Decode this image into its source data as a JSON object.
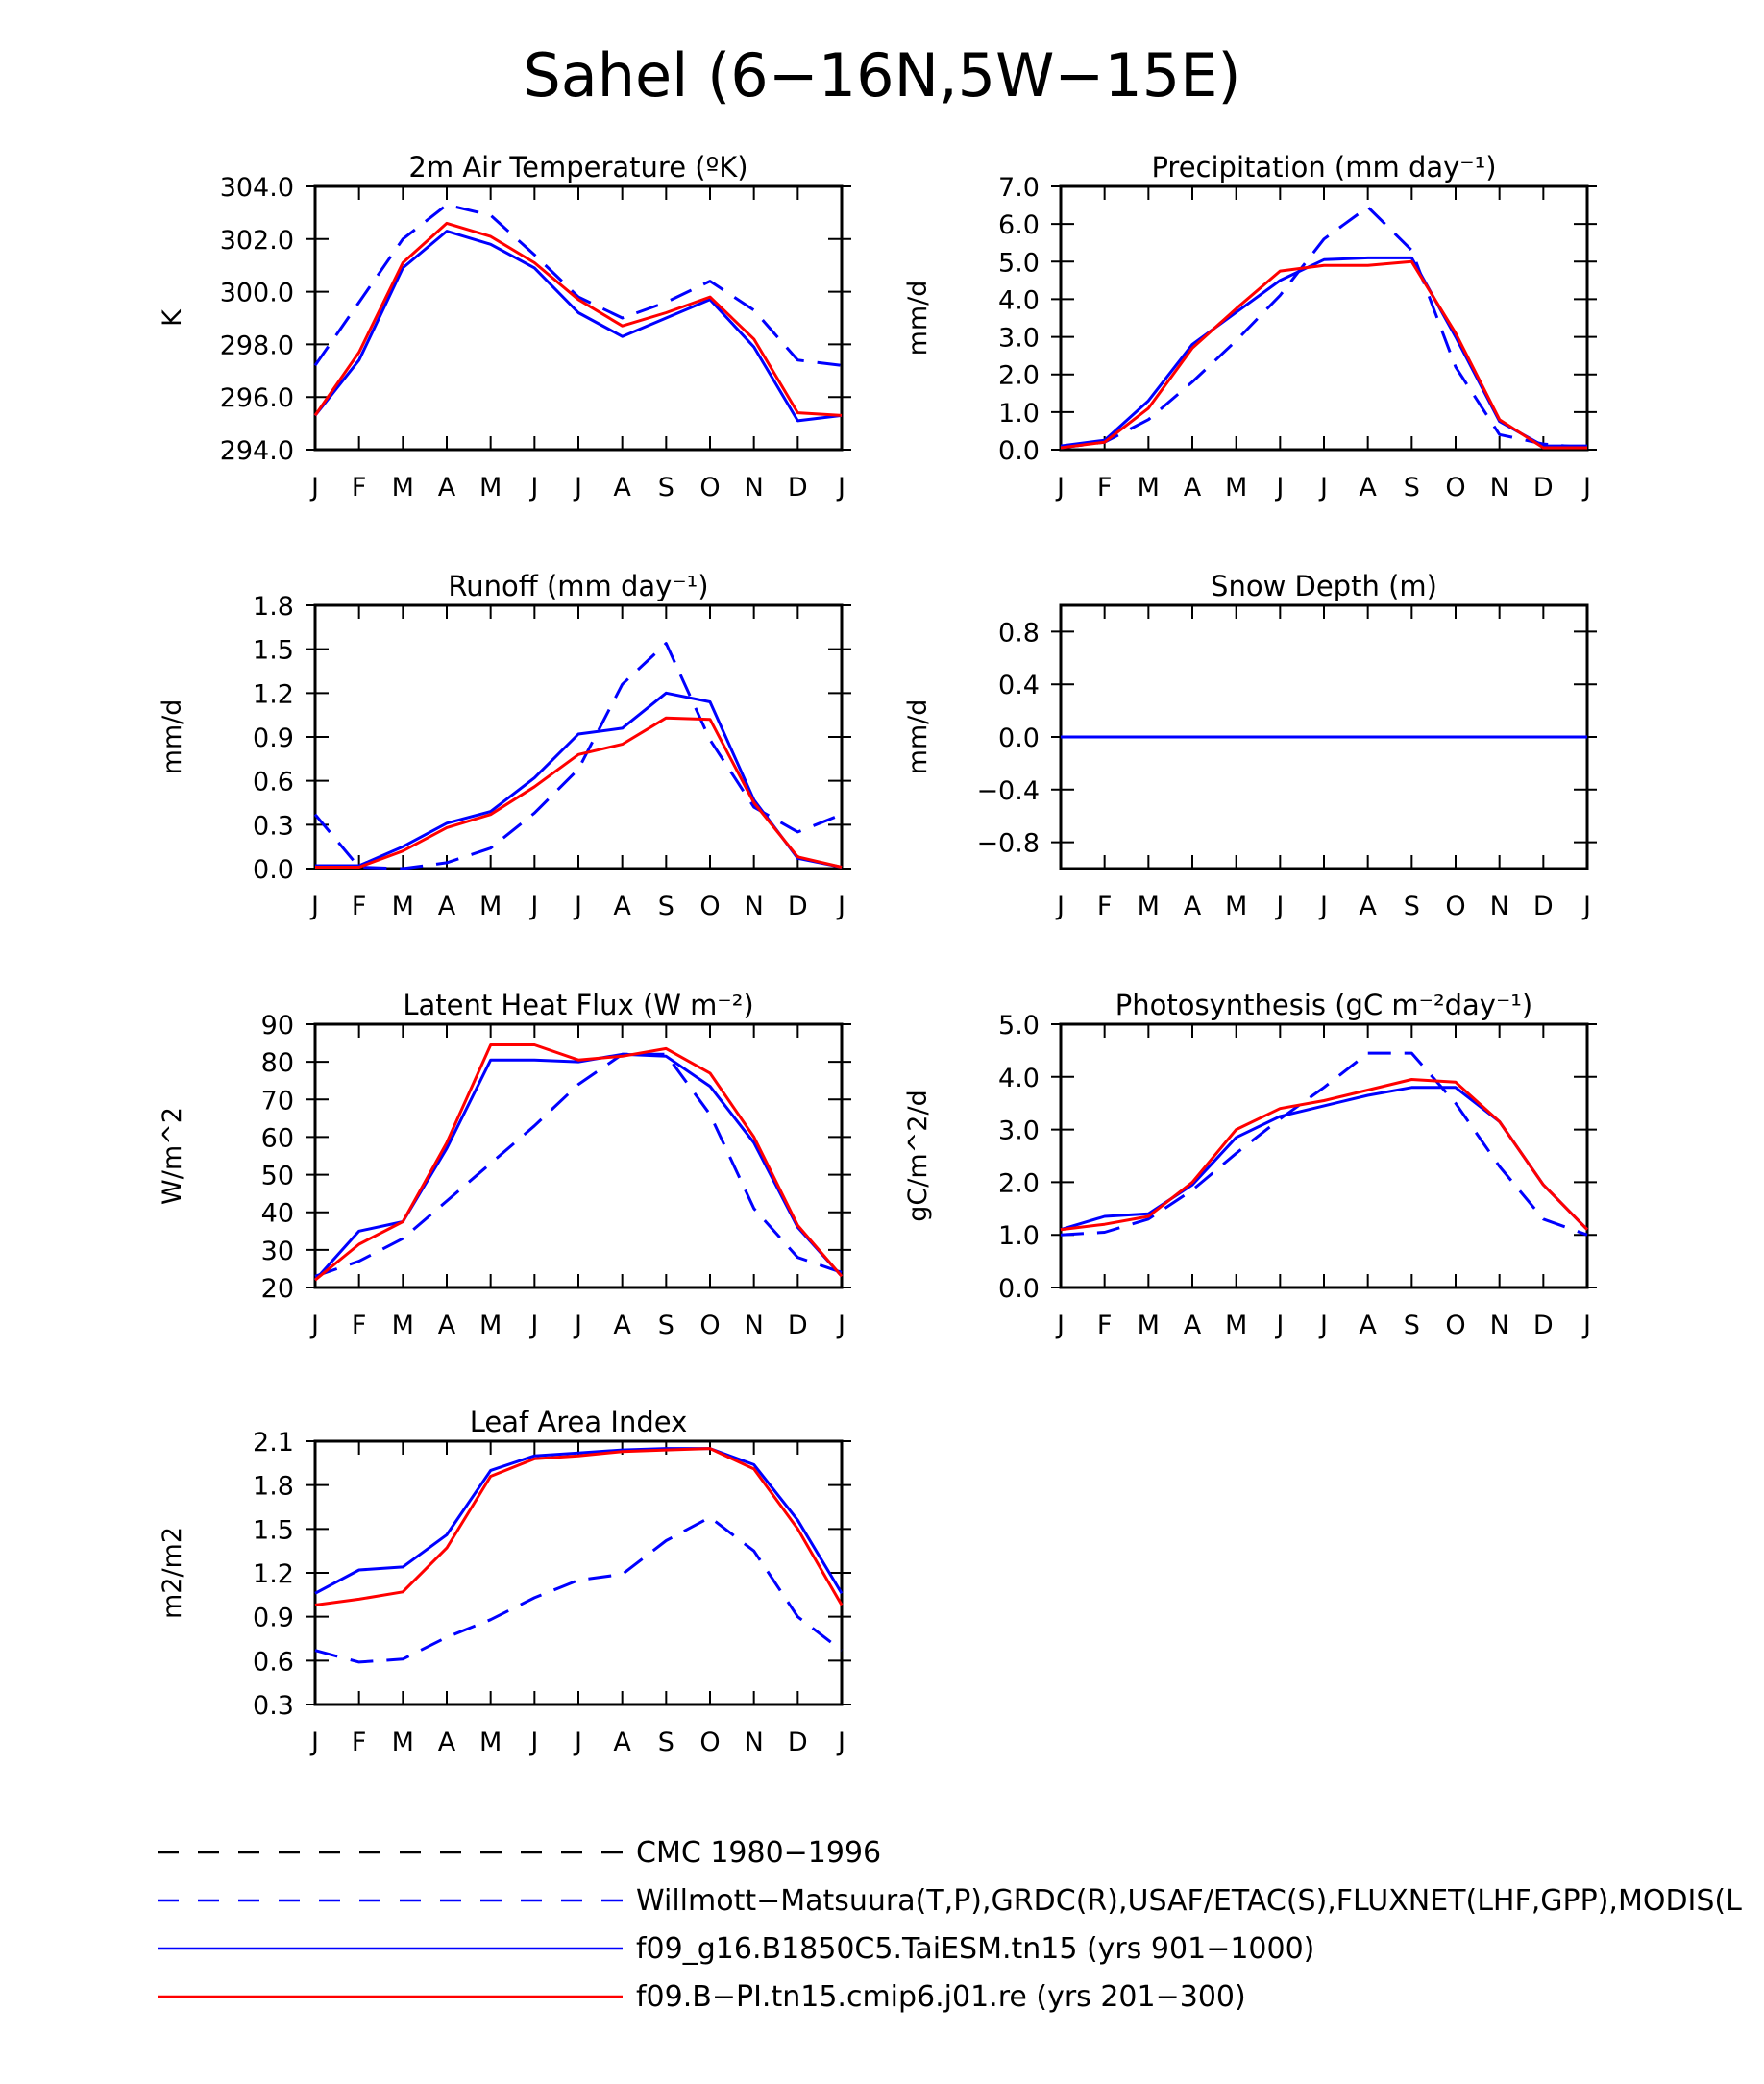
{
  "title": "Sahel (6−16N,5W−15E)",
  "months": [
    "J",
    "F",
    "M",
    "A",
    "M",
    "J",
    "J",
    "A",
    "S",
    "O",
    "N",
    "D",
    "J"
  ],
  "colors": {
    "red": "#ff0000",
    "blue": "#0000ff",
    "black": "#000000"
  },
  "legend": [
    {
      "label": "CMC 1980−1996",
      "color": "#000000",
      "dash": true
    },
    {
      "label": "Willmott−Matsuura(T,P),GRDC(R),USAF/ETAC(S),FLUXNET(LHF,GPP),MODIS(L",
      "color": "#0000ff",
      "dash": true
    },
    {
      "label": "f09_g16.B1850C5.TaiESM.tn15 (yrs 901−1000)",
      "color": "#0000ff",
      "dash": false
    },
    {
      "label": "f09.B−PI.tn15.cmip6.j01.re (yrs 201−300)",
      "color": "#ff0000",
      "dash": false
    }
  ],
  "chart_data": [
    {
      "type": "line",
      "title": "2m Air Temperature (ºK)",
      "ylabel": "K",
      "ylim": [
        294.0,
        304.0
      ],
      "yticks": [
        "294.0",
        "296.0",
        "298.0",
        "300.0",
        "302.0",
        "304.0"
      ],
      "x": [
        "J",
        "F",
        "M",
        "A",
        "M",
        "J",
        "J",
        "A",
        "S",
        "O",
        "N",
        "D",
        "J"
      ],
      "series": [
        {
          "color": "#0000ff",
          "dash": true,
          "values": [
            297.2,
            299.6,
            302.0,
            303.3,
            302.9,
            301.4,
            299.8,
            299.0,
            299.6,
            300.4,
            299.3,
            297.4,
            297.2
          ]
        },
        {
          "color": "#0000ff",
          "dash": false,
          "values": [
            295.3,
            297.4,
            300.9,
            302.3,
            301.8,
            300.9,
            299.2,
            298.3,
            299.0,
            299.7,
            297.9,
            295.1,
            295.3
          ]
        },
        {
          "color": "#ff0000",
          "dash": false,
          "values": [
            295.3,
            297.7,
            301.1,
            302.6,
            302.1,
            301.1,
            299.7,
            298.7,
            299.2,
            299.8,
            298.2,
            295.4,
            295.3
          ]
        }
      ]
    },
    {
      "type": "line",
      "title": "Precipitation (mm day⁻¹)",
      "ylabel": "mm/d",
      "ylim": [
        0.0,
        7.0
      ],
      "yticks": [
        "0.0",
        "1.0",
        "2.0",
        "3.0",
        "4.0",
        "5.0",
        "6.0",
        "7.0"
      ],
      "x": [
        "J",
        "F",
        "M",
        "A",
        "M",
        "J",
        "J",
        "A",
        "S",
        "O",
        "N",
        "D",
        "J"
      ],
      "series": [
        {
          "color": "#0000ff",
          "dash": true,
          "values": [
            0.05,
            0.2,
            0.8,
            1.8,
            2.9,
            4.1,
            5.6,
            6.45,
            5.3,
            2.2,
            0.4,
            0.15,
            0.05
          ]
        },
        {
          "color": "#0000ff",
          "dash": false,
          "values": [
            0.1,
            0.25,
            1.3,
            2.8,
            3.65,
            4.5,
            5.05,
            5.1,
            5.1,
            3.0,
            0.75,
            0.1,
            0.1
          ]
        },
        {
          "color": "#ff0000",
          "dash": false,
          "values": [
            0.05,
            0.2,
            1.1,
            2.7,
            3.75,
            4.75,
            4.9,
            4.9,
            5.0,
            3.1,
            0.8,
            0.05,
            0.05
          ]
        }
      ]
    },
    {
      "type": "line",
      "title": "Runoff (mm day⁻¹)",
      "ylabel": "mm/d",
      "ylim": [
        0.0,
        1.8
      ],
      "yticks": [
        "0.0",
        "0.3",
        "0.6",
        "0.9",
        "1.2",
        "1.5",
        "1.8"
      ],
      "x": [
        "J",
        "F",
        "M",
        "A",
        "M",
        "J",
        "J",
        "A",
        "S",
        "O",
        "N",
        "D",
        "J"
      ],
      "series": [
        {
          "color": "#0000ff",
          "dash": true,
          "values": [
            0.37,
            0.01,
            0.0,
            0.04,
            0.14,
            0.38,
            0.68,
            1.26,
            1.54,
            0.88,
            0.42,
            0.25,
            0.37
          ]
        },
        {
          "color": "#0000ff",
          "dash": false,
          "values": [
            0.02,
            0.02,
            0.15,
            0.31,
            0.39,
            0.62,
            0.92,
            0.96,
            1.2,
            1.14,
            0.47,
            0.07,
            0.01
          ]
        },
        {
          "color": "#ff0000",
          "dash": false,
          "values": [
            0.01,
            0.01,
            0.12,
            0.28,
            0.37,
            0.56,
            0.78,
            0.85,
            1.03,
            1.02,
            0.45,
            0.08,
            0.01
          ]
        }
      ]
    },
    {
      "type": "line",
      "title": "Snow Depth (m)",
      "ylabel": "mm/d",
      "ylim": [
        -1.0,
        1.0
      ],
      "yticks": [
        "−0.8",
        "−0.4",
        "0.0",
        "0.4",
        "0.8"
      ],
      "x": [
        "J",
        "F",
        "M",
        "A",
        "M",
        "J",
        "J",
        "A",
        "S",
        "O",
        "N",
        "D",
        "J"
      ],
      "series": [
        {
          "color": "#ff0000",
          "dash": false,
          "values": [
            0,
            0,
            0,
            0,
            0,
            0,
            0,
            0,
            0,
            0,
            0,
            0,
            0
          ]
        },
        {
          "color": "#0000ff",
          "dash": false,
          "values": [
            0,
            0,
            0,
            0,
            0,
            0,
            0,
            0,
            0,
            0,
            0,
            0,
            0
          ]
        },
        {
          "color": "#0000ff",
          "dash": true,
          "values": [
            0,
            0,
            0,
            0,
            0,
            0,
            0,
            0,
            0,
            0,
            0,
            0,
            0
          ]
        }
      ]
    },
    {
      "type": "line",
      "title": "Latent Heat Flux (W m⁻²)",
      "ylabel": "W/m^2",
      "ylim": [
        20,
        90
      ],
      "yticks": [
        "20",
        "30",
        "40",
        "50",
        "60",
        "70",
        "80",
        "90"
      ],
      "x": [
        "J",
        "F",
        "M",
        "A",
        "M",
        "J",
        "J",
        "A",
        "S",
        "O",
        "N",
        "D",
        "J"
      ],
      "series": [
        {
          "color": "#0000ff",
          "dash": true,
          "values": [
            23,
            27,
            33,
            43,
            53,
            63,
            74,
            82,
            82,
            66,
            41,
            28,
            24
          ]
        },
        {
          "color": "#0000ff",
          "dash": false,
          "values": [
            22,
            35,
            37.5,
            57,
            80.5,
            80.5,
            80,
            82,
            81.5,
            73.5,
            58.5,
            36,
            23
          ]
        },
        {
          "color": "#ff0000",
          "dash": false,
          "values": [
            22,
            31.5,
            37.5,
            58.5,
            84.5,
            84.5,
            80.5,
            81.5,
            83.5,
            77,
            60,
            36.5,
            23
          ]
        }
      ]
    },
    {
      "type": "line",
      "title": "Photosynthesis (gC m⁻²day⁻¹)",
      "ylabel": "gC/m^2/d",
      "ylim": [
        0.0,
        5.0
      ],
      "yticks": [
        "0.0",
        "1.0",
        "2.0",
        "3.0",
        "4.0",
        "5.0"
      ],
      "x": [
        "J",
        "F",
        "M",
        "A",
        "M",
        "J",
        "J",
        "A",
        "S",
        "O",
        "N",
        "D",
        "J"
      ],
      "series": [
        {
          "color": "#0000ff",
          "dash": true,
          "values": [
            1.0,
            1.05,
            1.3,
            1.85,
            2.55,
            3.2,
            3.8,
            4.45,
            4.45,
            3.5,
            2.3,
            1.3,
            1.0
          ]
        },
        {
          "color": "#0000ff",
          "dash": false,
          "values": [
            1.1,
            1.35,
            1.4,
            1.95,
            2.85,
            3.25,
            3.45,
            3.65,
            3.8,
            3.8,
            3.15,
            1.95,
            1.1
          ]
        },
        {
          "color": "#ff0000",
          "dash": false,
          "values": [
            1.1,
            1.2,
            1.35,
            2.0,
            3.0,
            3.4,
            3.55,
            3.75,
            3.95,
            3.9,
            3.15,
            1.95,
            1.1
          ]
        }
      ]
    },
    {
      "type": "line",
      "title": "Leaf Area Index",
      "ylabel": "m2/m2",
      "ylim": [
        0.3,
        2.1
      ],
      "yticks": [
        "0.3",
        "0.6",
        "0.9",
        "1.2",
        "1.5",
        "1.8",
        "2.1"
      ],
      "x": [
        "J",
        "F",
        "M",
        "A",
        "M",
        "J",
        "J",
        "A",
        "S",
        "O",
        "N",
        "D",
        "J"
      ],
      "series": [
        {
          "color": "#0000ff",
          "dash": true,
          "values": [
            0.67,
            0.59,
            0.61,
            0.76,
            0.88,
            1.03,
            1.15,
            1.19,
            1.42,
            1.58,
            1.35,
            0.9,
            0.67
          ]
        },
        {
          "color": "#0000ff",
          "dash": false,
          "values": [
            1.06,
            1.22,
            1.24,
            1.46,
            1.9,
            2.0,
            2.02,
            2.04,
            2.05,
            2.05,
            1.94,
            1.56,
            1.06
          ]
        },
        {
          "color": "#ff0000",
          "dash": false,
          "values": [
            0.98,
            1.02,
            1.07,
            1.37,
            1.86,
            1.98,
            2.0,
            2.03,
            2.04,
            2.05,
            1.91,
            1.5,
            0.98
          ]
        }
      ]
    }
  ]
}
